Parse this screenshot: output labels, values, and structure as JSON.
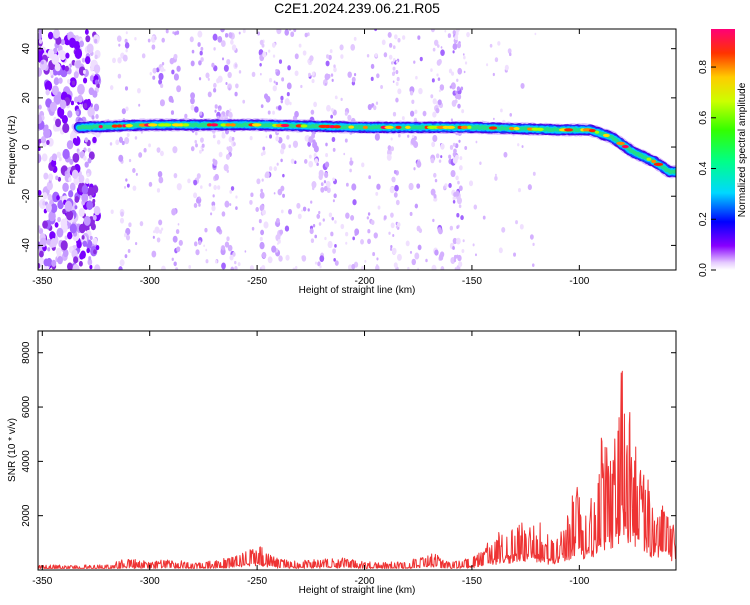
{
  "title": "C2E1.2024.239.06.21.R05",
  "chart_data": [
    {
      "type": "heatmap",
      "xlabel": "Height of straight line (km)",
      "ylabel": "Frequency (Hz)",
      "xlim": [
        -352,
        -55
      ],
      "ylim": [
        -50,
        48
      ],
      "xticks": [
        -350,
        -300,
        -250,
        -200,
        -150,
        -100
      ],
      "yticks": [
        -40,
        -20,
        0,
        20,
        40
      ],
      "colorbar": {
        "label": "Normalized spectral amplitude",
        "ticks": [
          0.0,
          0.2,
          0.4,
          0.6,
          0.8
        ],
        "range": [
          0,
          0.95
        ]
      },
      "ridge": {
        "x_start": -333,
        "points": [
          [
            -333,
            8
          ],
          [
            -300,
            9
          ],
          [
            -250,
            9
          ],
          [
            -200,
            8
          ],
          [
            -150,
            8
          ],
          [
            -110,
            7
          ],
          [
            -95,
            7
          ],
          [
            -85,
            4
          ],
          [
            -75,
            -2
          ],
          [
            -65,
            -6
          ],
          [
            -58,
            -10
          ]
        ]
      }
    },
    {
      "type": "line",
      "xlabel": "Height of straight line (km)",
      "ylabel": "SNR (10 * v/v)",
      "xlim": [
        -352,
        -55
      ],
      "ylim": [
        0,
        8800
      ],
      "xticks": [
        -350,
        -300,
        -250,
        -200,
        -150,
        -100
      ],
      "yticks": [
        2000,
        4000,
        6000,
        8000
      ],
      "color": "#ee3333",
      "envelope": [
        [
          -352,
          180
        ],
        [
          -320,
          200
        ],
        [
          -310,
          450
        ],
        [
          -300,
          300
        ],
        [
          -290,
          420
        ],
        [
          -280,
          250
        ],
        [
          -260,
          500
        ],
        [
          -250,
          950
        ],
        [
          -240,
          400
        ],
        [
          -230,
          350
        ],
        [
          -210,
          450
        ],
        [
          -200,
          300
        ],
        [
          -180,
          300
        ],
        [
          -170,
          750
        ],
        [
          -160,
          300
        ],
        [
          -150,
          450
        ],
        [
          -140,
          1300
        ],
        [
          -130,
          1700
        ],
        [
          -120,
          2000
        ],
        [
          -115,
          1300
        ],
        [
          -110,
          1400
        ],
        [
          -105,
          2200
        ],
        [
          -102,
          3500
        ],
        [
          -98,
          2000
        ],
        [
          -92,
          3400
        ],
        [
          -90,
          5000
        ],
        [
          -85,
          4200
        ],
        [
          -82,
          6200
        ],
        [
          -80,
          8300
        ],
        [
          -78,
          6500
        ],
        [
          -75,
          5400
        ],
        [
          -70,
          3700
        ],
        [
          -65,
          2800
        ],
        [
          -60,
          2500
        ],
        [
          -55,
          1400
        ]
      ]
    }
  ]
}
